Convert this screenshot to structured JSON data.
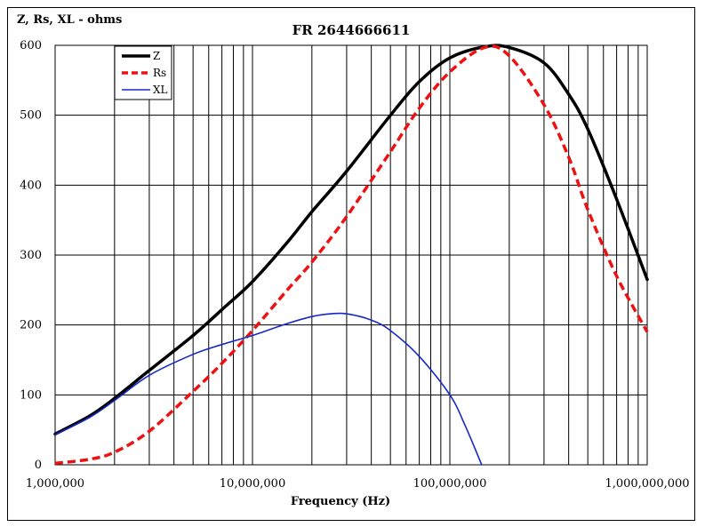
{
  "chart_data": {
    "type": "line",
    "title": "FR 2644666611",
    "ylabel": "Z, Rs, XL - ohms",
    "xlabel": "Frequency (Hz)",
    "xscale": "log",
    "xlim": [
      1000000,
      1000000000
    ],
    "ylim": [
      0,
      600
    ],
    "yticks": [
      0,
      100,
      200,
      300,
      400,
      500,
      600
    ],
    "ytick_labels": [
      "0",
      "100",
      "200",
      "300",
      "400",
      "500",
      "600"
    ],
    "xticks": [
      1000000,
      10000000,
      100000000,
      1000000000
    ],
    "xtick_labels": [
      "1,000,000",
      "10,000,000",
      "100,000,000",
      "1,000,000,000"
    ],
    "grid": true,
    "legend_position": "top-left",
    "series": [
      {
        "name": "Z",
        "color": "#000000",
        "style": "solid",
        "width": 3.5,
        "x": [
          1000000,
          1500000,
          2000000,
          3000000,
          5000000,
          7000000,
          10000000,
          15000000,
          20000000,
          30000000,
          50000000,
          70000000,
          100000000,
          150000000,
          200000000,
          300000000,
          400000000,
          500000000,
          700000000,
          1000000000
        ],
        "y": [
          44,
          70,
          95,
          135,
          185,
          222,
          262,
          318,
          362,
          420,
          500,
          548,
          582,
          598,
          597,
          575,
          530,
          480,
          380,
          265
        ]
      },
      {
        "name": "Rs",
        "color": "#ee1111",
        "style": "dashed",
        "width": 3.5,
        "x": [
          1000000,
          1500000,
          2000000,
          3000000,
          5000000,
          7000000,
          10000000,
          15000000,
          20000000,
          30000000,
          50000000,
          70000000,
          100000000,
          150000000,
          200000000,
          300000000,
          400000000,
          500000000,
          700000000,
          1000000000
        ],
        "y": [
          2,
          8,
          18,
          48,
          105,
          145,
          192,
          250,
          290,
          355,
          448,
          510,
          562,
          597,
          585,
          515,
          440,
          365,
          270,
          190
        ]
      },
      {
        "name": "XL",
        "color": "#1428c8",
        "style": "solid",
        "width": 1.6,
        "x": [
          1000000,
          1500000,
          2000000,
          3000000,
          5000000,
          7000000,
          10000000,
          15000000,
          20000000,
          25000000,
          30000000,
          40000000,
          50000000,
          70000000,
          100000000,
          120000000,
          145000000
        ],
        "y": [
          43,
          68,
          92,
          128,
          158,
          172,
          185,
          202,
          212,
          216,
          216,
          207,
          192,
          155,
          100,
          55,
          0
        ]
      }
    ]
  }
}
